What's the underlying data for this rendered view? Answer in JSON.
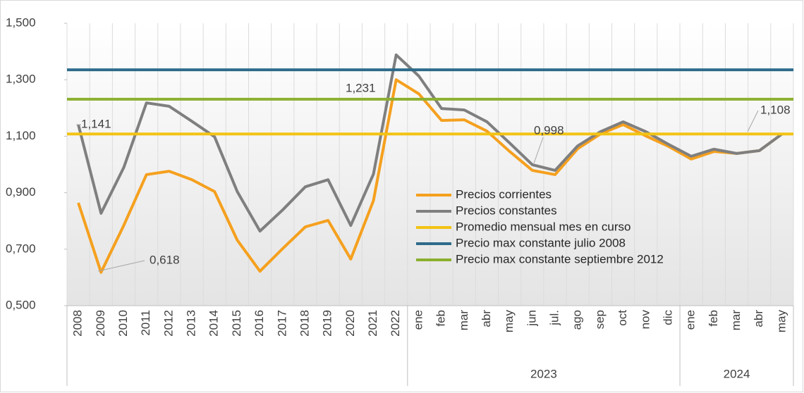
{
  "chart_data": {
    "type": "line",
    "categories": [
      "2008",
      "2009",
      "2010",
      "2011",
      "2012",
      "2013",
      "2014",
      "2015",
      "2016",
      "2017",
      "2018",
      "2019",
      "2020",
      "2021",
      "2022",
      "ene",
      "feb",
      "mar",
      "abr",
      "may",
      "jun",
      "jul.",
      "ago",
      "sep",
      "oct",
      "nov",
      "dic",
      "ene",
      "feb",
      "mar",
      "abr",
      "may"
    ],
    "group_labels": [
      null,
      "2023",
      "2024"
    ],
    "group_sizes": [
      15,
      12,
      5
    ],
    "ylim": [
      0.5,
      1.5
    ],
    "yticks": [
      {
        "value": 0.5,
        "label": "0,500"
      },
      {
        "value": 0.7,
        "label": "0,700"
      },
      {
        "value": 0.9,
        "label": "0,900"
      },
      {
        "value": 1.1,
        "label": "1,100"
      },
      {
        "value": 1.3,
        "label": "1,300"
      },
      {
        "value": 1.5,
        "label": "1,500"
      }
    ],
    "series": [
      {
        "name": "Precios corrientes",
        "color": "#f5a01e",
        "values": [
          0.864,
          0.618,
          0.784,
          0.964,
          0.976,
          0.946,
          0.904,
          0.732,
          0.622,
          0.702,
          0.779,
          0.802,
          0.665,
          0.872,
          1.3,
          1.25,
          1.156,
          1.158,
          1.118,
          1.046,
          0.979,
          0.964,
          1.056,
          1.108,
          1.141,
          1.101,
          1.064,
          1.019,
          1.046,
          1.039,
          1.049,
          1.108
        ]
      },
      {
        "name": "Precios constantes",
        "color": "#7f7f7f",
        "values": [
          1.141,
          0.827,
          0.989,
          1.218,
          1.206,
          1.153,
          1.098,
          0.904,
          0.764,
          0.839,
          0.921,
          0.946,
          0.784,
          0.966,
          1.388,
          1.313,
          1.198,
          1.193,
          1.151,
          1.076,
          0.999,
          0.979,
          1.066,
          1.116,
          1.151,
          1.116,
          1.071,
          1.029,
          1.054,
          1.039,
          1.049,
          1.108
        ]
      },
      {
        "name": "Promedio mensual mes en curso",
        "color": "#f2c314",
        "level": 1.108
      },
      {
        "name": "Precio max constante julio 2008",
        "color": "#2e6b8a",
        "level": 1.335
      },
      {
        "name": "Precio max constante septiembre 2012",
        "color": "#8cb030",
        "level": 1.231
      }
    ],
    "annotations": [
      "1,141",
      "0,618",
      "1,231",
      "0,998",
      "1,108"
    ]
  }
}
